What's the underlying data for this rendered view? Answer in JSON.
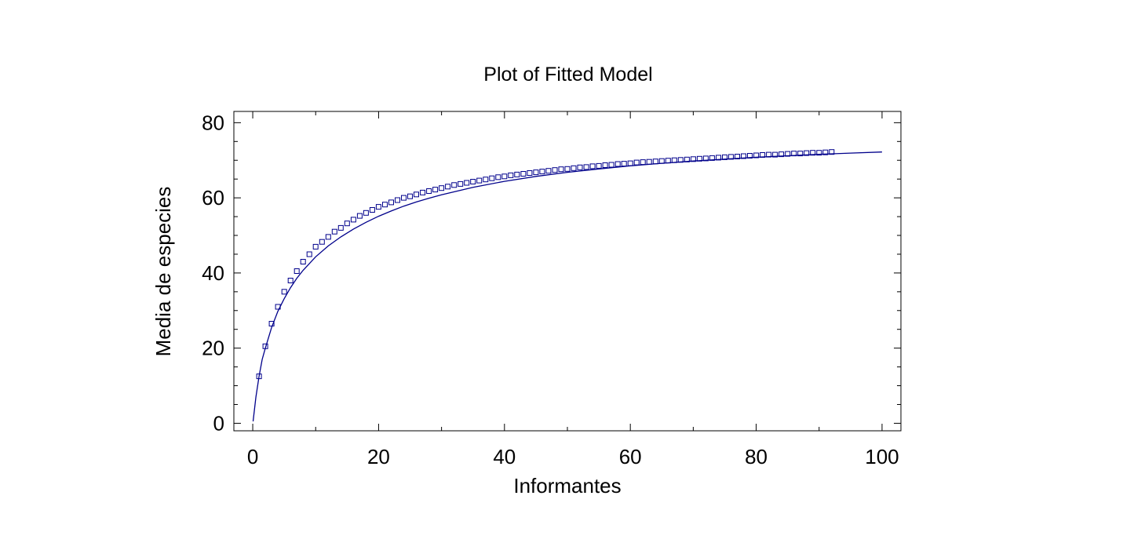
{
  "chart_data": {
    "type": "scatter",
    "title": "Plot of Fitted Model",
    "xlabel": "Informantes",
    "ylabel": "Media de especies",
    "xlim": [
      -3,
      103
    ],
    "ylim": [
      -2,
      83
    ],
    "x_ticks": [
      "0",
      "20",
      "40",
      "60",
      "80",
      "100"
    ],
    "y_ticks": [
      "0",
      "20",
      "40",
      "60",
      "80"
    ],
    "grid": false,
    "colors": {
      "series": "#00008b",
      "axes": "#000000"
    },
    "series": [
      {
        "kind": "points",
        "marker": "square",
        "x": [
          1,
          2,
          3,
          4,
          5,
          6,
          7,
          8,
          9,
          10,
          11,
          12,
          13,
          14,
          15,
          16,
          17,
          18,
          19,
          20,
          21,
          22,
          23,
          24,
          25,
          26,
          27,
          28,
          29,
          30,
          31,
          32,
          33,
          34,
          35,
          36,
          37,
          38,
          39,
          40,
          41,
          42,
          43,
          44,
          45,
          46,
          47,
          48,
          49,
          50,
          51,
          52,
          53,
          54,
          55,
          56,
          57,
          58,
          59,
          60,
          61,
          62,
          63,
          64,
          65,
          66,
          67,
          68,
          69,
          70,
          71,
          72,
          73,
          74,
          75,
          76,
          77,
          78,
          79,
          80,
          81,
          82,
          83,
          84,
          85,
          86,
          87,
          88,
          89,
          90,
          91,
          92
        ],
        "y": [
          12.5,
          20.5,
          26.5,
          31,
          35,
          38,
          40.5,
          43,
          45,
          47,
          48.3,
          49.6,
          51,
          52,
          53.2,
          54.2,
          55.2,
          56,
          56.8,
          57.6,
          58.2,
          58.8,
          59.4,
          60,
          60.4,
          60.9,
          61.4,
          61.8,
          62.2,
          62.6,
          63,
          63.4,
          63.7,
          64,
          64.3,
          64.6,
          64.9,
          65.2,
          65.5,
          65.7,
          66,
          66.2,
          66.4,
          66.6,
          66.8,
          67,
          67.2,
          67.4,
          67.6,
          67.7,
          67.9,
          68.1,
          68.2,
          68.4,
          68.5,
          68.7,
          68.8,
          69,
          69.1,
          69.2,
          69.4,
          69.5,
          69.6,
          69.7,
          69.8,
          69.9,
          70,
          70.1,
          70.2,
          70.3,
          70.4,
          70.5,
          70.6,
          70.7,
          70.8,
          70.9,
          71,
          71.1,
          71.2,
          71.3,
          71.4,
          71.5,
          71.5,
          71.6,
          71.7,
          71.8,
          71.8,
          71.9,
          72,
          72,
          72.1,
          72.2
        ]
      },
      {
        "kind": "fitted-line",
        "x": [
          0.05,
          0.5,
          1,
          1.5,
          2,
          3,
          4,
          5,
          6,
          7,
          8,
          10,
          12,
          14,
          16,
          18,
          20,
          22,
          24,
          26,
          28,
          30,
          35,
          40,
          45,
          50,
          55,
          60,
          65,
          70,
          75,
          80,
          85,
          90,
          95,
          100
        ],
        "y": [
          0.5,
          7,
          12.5,
          17,
          20,
          25.5,
          29.8,
          33.2,
          36.1,
          38.6,
          40.7,
          44.3,
          47.2,
          49.6,
          51.7,
          53.5,
          55.1,
          56.5,
          57.8,
          58.9,
          59.9,
          60.8,
          62.8,
          64.4,
          65.7,
          66.8,
          67.7,
          68.5,
          69.2,
          69.8,
          70.3,
          70.8,
          71.2,
          71.6,
          71.9,
          72.2
        ]
      }
    ]
  }
}
